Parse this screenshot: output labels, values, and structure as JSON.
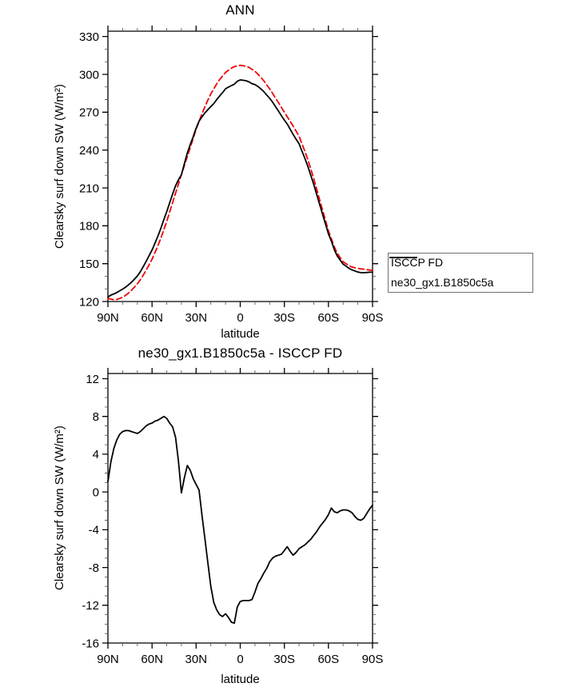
{
  "chart_data": [
    {
      "id": "top",
      "type": "line",
      "title": "ANN",
      "xlabel": "latitude",
      "ylabel": "Clearsky surf down SW (W/m²)",
      "x_tick_labels": [
        "90N",
        "60N",
        "30N",
        "0",
        "30S",
        "60S",
        "90S"
      ],
      "x_tick_values": [
        90,
        60,
        30,
        0,
        -30,
        -60,
        -90
      ],
      "x_minor_step": 10,
      "ylim": [
        120,
        334.2
      ],
      "y_tick_values": [
        120,
        150,
        180,
        210,
        240,
        270,
        300,
        330
      ],
      "y_tick_labels": [
        "120",
        "150",
        "180",
        "210",
        "240",
        "270",
        "300",
        "330"
      ],
      "y_minor_step": 10,
      "grid": false,
      "legend_position": "outside-right",
      "legend": {
        "entries": [
          {
            "label": "ISCCP FD",
            "color": "#f00000",
            "dash": "6 4"
          },
          {
            "label": "ne30_gx1.B1850c5a",
            "color": "#000000",
            "dash": ""
          }
        ]
      },
      "lat": [
        90,
        88,
        86,
        84,
        82,
        80,
        78,
        76,
        74,
        72,
        70,
        68,
        66,
        64,
        62,
        60,
        58,
        56,
        54,
        52,
        50,
        48,
        46,
        44,
        42,
        40,
        38,
        36,
        34,
        32,
        30,
        28,
        26,
        24,
        22,
        20,
        18,
        16,
        14,
        12,
        10,
        8,
        6,
        4,
        2,
        0,
        -2,
        -4,
        -6,
        -8,
        -10,
        -12,
        -14,
        -16,
        -18,
        -20,
        -22,
        -24,
        -26,
        -28,
        -30,
        -32,
        -34,
        -36,
        -38,
        -40,
        -42,
        -44,
        -46,
        -48,
        -50,
        -52,
        -54,
        -56,
        -58,
        -60,
        -62,
        -64,
        -66,
        -68,
        -70,
        -72,
        -74,
        -76,
        -78,
        -80,
        -82,
        -84,
        -86,
        -88,
        -90
      ],
      "series": [
        {
          "name": "ISCCP FD",
          "color": "#f00000",
          "dash": "7 4",
          "width": 1.8,
          "values": [
            122.5,
            121.9,
            121.4,
            121.6,
            122.4,
            123.4,
            124.9,
            126.7,
            128.9,
            131.4,
            134.0,
            137.2,
            140.8,
            144.8,
            149.1,
            153.5,
            158.7,
            164.2,
            170.2,
            176.8,
            183.5,
            190.9,
            198.3,
            205.9,
            213.3,
            220.5,
            227.7,
            234.9,
            242.1,
            249.3,
            256.5,
            262.7,
            268.9,
            274.5,
            279.5,
            284.5,
            288.5,
            292.5,
            295.9,
            298.7,
            301.5,
            303.2,
            304.9,
            306.1,
            306.7,
            307.2,
            306.8,
            306.4,
            305.5,
            304.0,
            302.5,
            300.1,
            297.7,
            295.0,
            291.7,
            288.5,
            284.9,
            281.3,
            277.6,
            273.8,
            270.0,
            266.4,
            262.8,
            259.0,
            255.0,
            251.0,
            245.0,
            239.0,
            232.4,
            224.9,
            217.5,
            209.1,
            200.7,
            192.4,
            184.2,
            176.0,
            169.6,
            163.2,
            158.2,
            154.8,
            151.5,
            149.9,
            148.3,
            147.3,
            146.8,
            146.3,
            145.9,
            145.6,
            145.3,
            145.0,
            144.6
          ]
        },
        {
          "name": "ne30_gx1.B1850c5a",
          "color": "#000000",
          "dash": "",
          "width": 1.8,
          "values": [
            123.6,
            125.1,
            126.0,
            127.1,
            128.5,
            129.8,
            131.4,
            133.2,
            135.3,
            137.7,
            140.2,
            143.6,
            147.5,
            151.8,
            156.3,
            160.8,
            166.2,
            171.8,
            178.0,
            184.8,
            191.3,
            198.2,
            205.2,
            211.7,
            216.5,
            220.4,
            229.2,
            237.7,
            244.4,
            250.7,
            257.3,
            262.9,
            266.4,
            269.5,
            272.0,
            274.5,
            276.8,
            280.0,
            282.9,
            285.5,
            288.6,
            289.9,
            291.1,
            292.2,
            294.5,
            295.6,
            295.3,
            294.9,
            294.0,
            292.6,
            291.9,
            290.4,
            288.5,
            286.4,
            283.6,
            281.1,
            277.9,
            274.5,
            270.9,
            267.2,
            263.8,
            260.6,
            256.5,
            252.3,
            248.6,
            245.0,
            239.2,
            233.4,
            227.1,
            219.9,
            212.9,
            204.9,
            197.0,
            189.1,
            181.3,
            173.6,
            167.9,
            161.1,
            156.0,
            152.8,
            149.6,
            148.0,
            146.3,
            145.1,
            144.2,
            143.4,
            142.9,
            142.8,
            143.0,
            143.2,
            143.2
          ]
        }
      ]
    },
    {
      "id": "bottom",
      "type": "line",
      "title": "ne30_gx1.B1850c5a - ISCCP FD",
      "xlabel": "latitude",
      "ylabel": "Clearsky surf down SW (W/m²)",
      "x_tick_labels": [
        "90N",
        "60N",
        "30N",
        "0",
        "30S",
        "60S",
        "90S"
      ],
      "x_tick_values": [
        90,
        60,
        30,
        0,
        -30,
        -60,
        -90
      ],
      "x_minor_step": 10,
      "ylim": [
        -16,
        12.55
      ],
      "y_tick_values": [
        -16,
        -12,
        -8,
        -4,
        0,
        4,
        8,
        12
      ],
      "y_tick_labels": [
        "-16",
        "-12",
        "-8",
        "-4",
        "0",
        "4",
        "8",
        "12"
      ],
      "y_minor_step": 1,
      "grid": false,
      "lat": [
        90,
        88,
        86,
        84,
        82,
        80,
        78,
        76,
        74,
        72,
        70,
        68,
        66,
        64,
        62,
        60,
        58,
        56,
        54,
        52,
        50,
        48,
        46,
        44,
        42,
        40,
        38,
        36,
        34,
        32,
        30,
        28,
        26,
        24,
        22,
        20,
        18,
        16,
        14,
        12,
        10,
        8,
        6,
        4,
        2,
        0,
        -2,
        -4,
        -6,
        -8,
        -10,
        -12,
        -14,
        -16,
        -18,
        -20,
        -22,
        -24,
        -26,
        -28,
        -30,
        -32,
        -34,
        -36,
        -38,
        -40,
        -42,
        -44,
        -46,
        -48,
        -50,
        -52,
        -54,
        -56,
        -58,
        -60,
        -62,
        -64,
        -66,
        -68,
        -70,
        -72,
        -74,
        -76,
        -78,
        -80,
        -82,
        -84,
        -86,
        -88,
        -90
      ],
      "series": [
        {
          "name": "ne30_gx1.B1850c5a - ISCCP FD",
          "color": "#000000",
          "dash": "",
          "width": 1.8,
          "values": [
            1.1,
            3.2,
            4.6,
            5.5,
            6.1,
            6.4,
            6.5,
            6.5,
            6.4,
            6.3,
            6.2,
            6.4,
            6.7,
            7.0,
            7.2,
            7.3,
            7.5,
            7.6,
            7.8,
            8.0,
            7.8,
            7.3,
            6.9,
            5.8,
            3.2,
            -0.1,
            1.5,
            2.8,
            2.3,
            1.4,
            0.8,
            0.2,
            -2.5,
            -5.0,
            -7.5,
            -10.0,
            -11.7,
            -12.5,
            -13.0,
            -13.2,
            -12.9,
            -13.3,
            -13.8,
            -13.9,
            -12.2,
            -11.6,
            -11.5,
            -11.5,
            -11.5,
            -11.4,
            -10.6,
            -9.7,
            -9.2,
            -8.6,
            -8.1,
            -7.4,
            -7.0,
            -6.8,
            -6.7,
            -6.6,
            -6.2,
            -5.8,
            -6.3,
            -6.7,
            -6.4,
            -6.0,
            -5.8,
            -5.6,
            -5.3,
            -5.0,
            -4.6,
            -4.2,
            -3.7,
            -3.3,
            -2.9,
            -2.4,
            -1.7,
            -2.1,
            -2.2,
            -2.0,
            -1.9,
            -1.9,
            -2.0,
            -2.2,
            -2.6,
            -2.9,
            -3.0,
            -2.8,
            -2.3,
            -1.8,
            -1.4
          ]
        }
      ]
    }
  ]
}
